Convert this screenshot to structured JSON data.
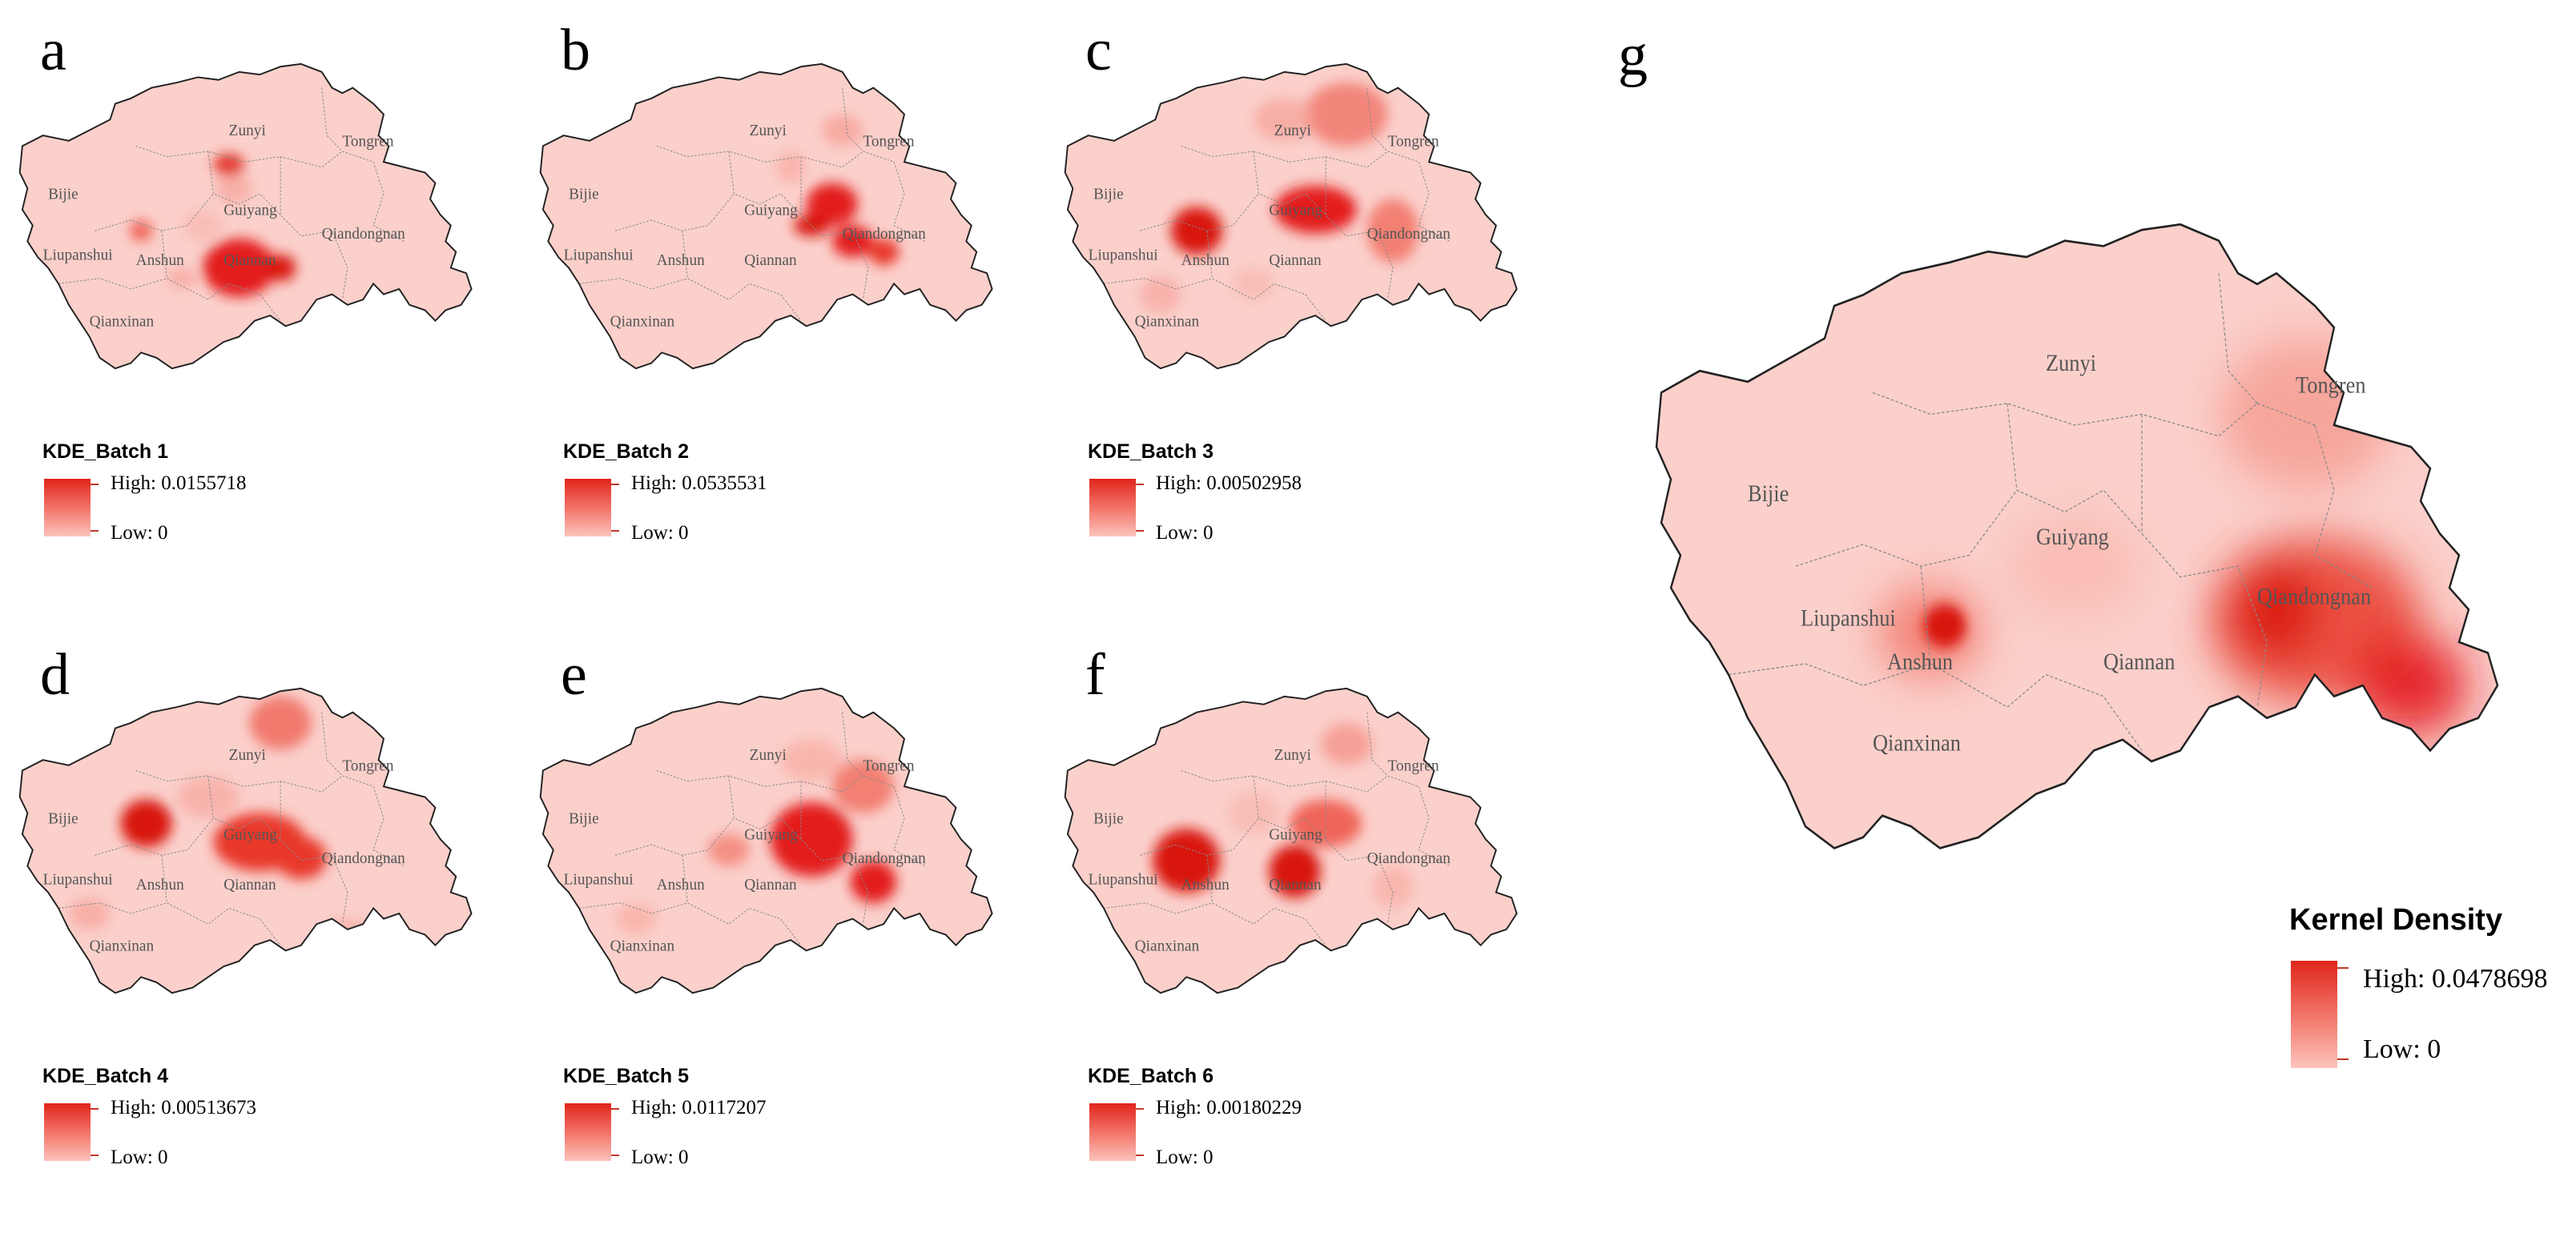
{
  "panels": [
    {
      "letter": "a",
      "legend_title": "KDE_Batch 1",
      "high": "High: 0.0155718",
      "low": "Low: 0",
      "labels": {
        "Zunyi": "Zunyi",
        "Tongren": "Tongren",
        "Bijie": "Bijie",
        "Guiyang": "Guiyang",
        "Qiandongnan": "Qiandongnan",
        "Liupanshui": "Liupanshui",
        "Anshun": "Anshun",
        "Qiannan": "Qiannan",
        "Qianxinan": "Qianxinan"
      }
    },
    {
      "letter": "b",
      "legend_title": "KDE_Batch 2",
      "high": "High: 0.0535531",
      "low": "Low: 0",
      "labels": {
        "Zunyi": "Zunyi",
        "Tongren": "Tongren",
        "Bijie": "Bijie",
        "Guiyang": "Guiyang",
        "Qiandongnan": "Qiandongnan",
        "Liupanshui": "Liupanshui",
        "Anshun": "Anshun",
        "Qiannan": "Qiannan",
        "Qianxinan": "Qianxinan"
      }
    },
    {
      "letter": "c",
      "legend_title": "KDE_Batch 3",
      "high": "High: 0.00502958",
      "low": "Low: 0",
      "labels": {
        "Zunyi": "Zunyi",
        "Tongren": "Tongren",
        "Bijie": "Bijie",
        "Guiyang": "Guiyang",
        "Qiandongnan": "Qiandongnan",
        "Liupanshui": "Liupanshui",
        "Anshun": "Anshun",
        "Qiannan": "Qiannan",
        "Qianxinan": "Qianxinan"
      }
    },
    {
      "letter": "d",
      "legend_title": "KDE_Batch 4",
      "high": "High: 0.00513673",
      "low": "Low: 0",
      "labels": {
        "Zunyi": "Zunyi",
        "Tongren": "Tongren",
        "Bijie": "Bijie",
        "Guiyang": "Guiyang",
        "Qiandongnan": "Qiandongnan",
        "Liupanshui": "Liupanshui",
        "Anshun": "Anshun",
        "Qiannan": "Qiannan",
        "Qianxinan": "Qianxinan"
      }
    },
    {
      "letter": "e",
      "legend_title": "KDE_Batch 5",
      "high": "High: 0.0117207",
      "low": "Low: 0",
      "labels": {
        "Zunyi": "Zunyi",
        "Tongren": "Tongren",
        "Bijie": "Bijie",
        "Guiyang": "Guiyang",
        "Qiandongnan": "Qiandongnan",
        "Liupanshui": "Liupanshui",
        "Anshun": "Anshun",
        "Qiannan": "Qiannan",
        "Qianxinan": "Qianxinan"
      }
    },
    {
      "letter": "f",
      "legend_title": "KDE_Batch 6",
      "high": "High: 0.00180229",
      "low": "Low: 0",
      "labels": {
        "Zunyi": "Zunyi",
        "Tongren": "Tongren",
        "Bijie": "Bijie",
        "Guiyang": "Guiyang",
        "Qiandongnan": "Qiandongnan",
        "Liupanshui": "Liupanshui",
        "Anshun": "Anshun",
        "Qiannan": "Qiannan",
        "Qianxinan": "Qianxinan"
      }
    }
  ],
  "main": {
    "letter": "g",
    "legend_title": "Kernel Density",
    "high": "High: 0.0478698",
    "low": "Low: 0",
    "labels": {
      "Zunyi": "Zunyi",
      "Tongren": "Tongren",
      "Bijie": "Bijie",
      "Guiyang": "Guiyang",
      "Qiandongnan": "Qiandongnan",
      "Liupanshui": "Liupanshui",
      "Anshun": "Anshun",
      "Qiannan": "Qiannan",
      "Qianxinan": "Qianxinan"
    }
  },
  "colors": {
    "base_fill": "#fbd0cb",
    "hotspot": "#e31a1c",
    "legend_high": "#e0251b",
    "legend_low": "#fbc3bd",
    "boundary": "#222222"
  }
}
